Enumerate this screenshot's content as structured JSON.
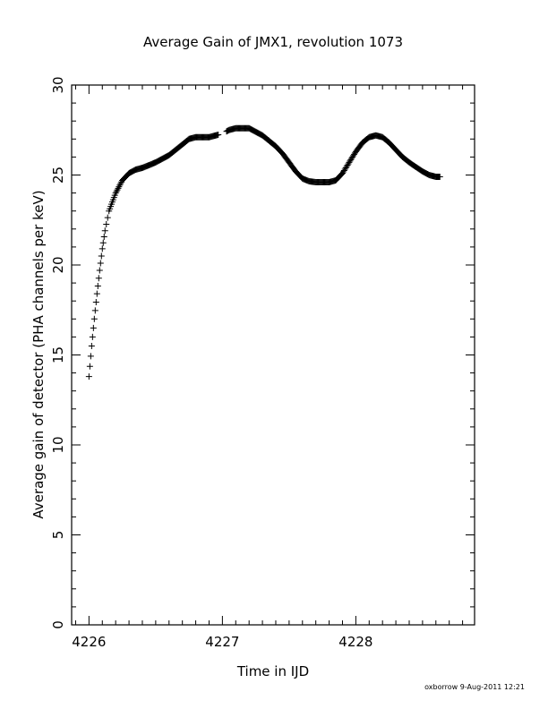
{
  "chart_data": {
    "type": "scatter",
    "title": "Average Gain of JMX1, revolution 1073",
    "xlabel": "Time in IJD",
    "ylabel": "Average gain of detector (PHA channels per keV)",
    "xlim": [
      4225.87,
      4228.89
    ],
    "ylim": [
      0,
      30
    ],
    "x_ticks": [
      4226,
      4227,
      4228
    ],
    "y_ticks": [
      0,
      5,
      10,
      15,
      20,
      25,
      30
    ],
    "marker": "plus",
    "grid": false,
    "series": [
      {
        "x": [
          4226.0,
          4226.02,
          4226.04,
          4226.06,
          4226.08,
          4226.1,
          4226.12,
          4226.15,
          4226.2,
          4226.25,
          4226.3,
          4226.35,
          4226.4,
          4226.45,
          4226.5,
          4226.55,
          4226.6,
          4226.65,
          4226.7,
          4226.75,
          4226.8,
          4226.85,
          4226.9,
          4226.95,
          4227.0,
          4227.05,
          4227.1,
          4227.15,
          4227.2,
          4227.25,
          4227.3,
          4227.35,
          4227.4,
          4227.45,
          4227.5,
          4227.55,
          4227.6,
          4227.65,
          4227.7,
          4227.75,
          4227.8,
          4227.85,
          4227.9,
          4227.95,
          4228.0,
          4228.05,
          4228.1,
          4228.15,
          4228.2,
          4228.25,
          4228.3,
          4228.35,
          4228.4,
          4228.45,
          4228.5,
          4228.55,
          4228.6,
          4228.63
        ],
        "y": [
          13.8,
          15.5,
          17.0,
          18.4,
          19.7,
          20.9,
          21.9,
          23.0,
          24.0,
          24.7,
          25.1,
          25.3,
          25.4,
          25.55,
          25.7,
          25.9,
          26.1,
          26.4,
          26.7,
          27.0,
          27.1,
          27.1,
          27.1,
          27.2,
          27.3,
          27.5,
          27.6,
          27.6,
          27.6,
          27.4,
          27.2,
          26.9,
          26.6,
          26.2,
          25.7,
          25.2,
          24.8,
          24.65,
          24.6,
          24.6,
          24.6,
          24.7,
          25.1,
          25.7,
          26.3,
          26.8,
          27.1,
          27.2,
          27.1,
          26.8,
          26.4,
          26.0,
          25.7,
          25.45,
          25.2,
          25.0,
          24.9,
          24.9
        ]
      }
    ]
  },
  "footer": {
    "stamp": "oxborrow   9-Aug-2011 12:21"
  }
}
